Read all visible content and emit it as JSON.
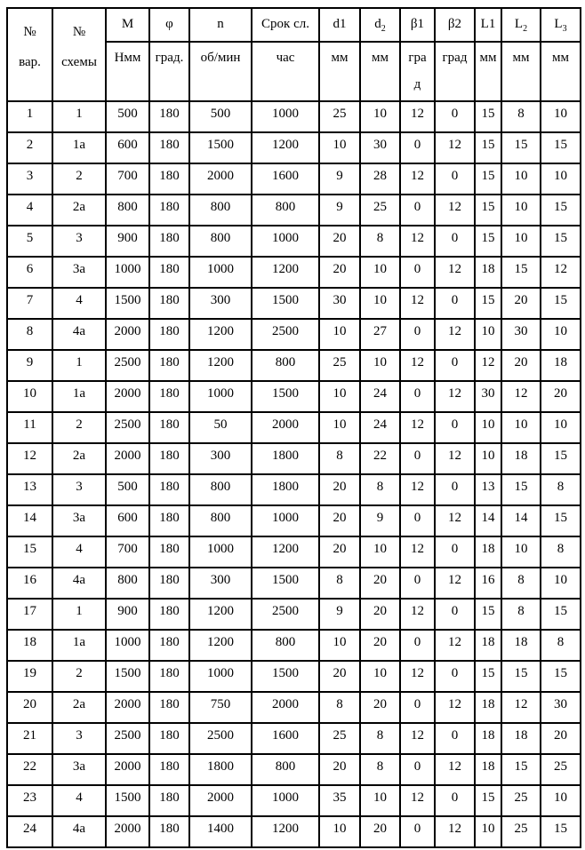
{
  "table": {
    "merged_headers": [
      {
        "line1": "№",
        "line2": "вар."
      },
      {
        "line1": "№",
        "line2": "схемы"
      }
    ],
    "params": [
      {
        "name": "M",
        "sub": "",
        "unit": "Нмм"
      },
      {
        "name": "φ",
        "sub": "",
        "unit": "град."
      },
      {
        "name": "n",
        "sub": "",
        "unit": "об/мин"
      },
      {
        "name": "Срок сл.",
        "sub": "",
        "unit": "час"
      },
      {
        "name": "d1",
        "sub": "",
        "unit": "мм"
      },
      {
        "name": "d",
        "sub": "2",
        "unit": "мм"
      },
      {
        "name": "β1",
        "sub": "",
        "unit": "град"
      },
      {
        "name": "β2",
        "sub": "",
        "unit": "град"
      },
      {
        "name": "L1",
        "sub": "",
        "unit": "мм"
      },
      {
        "name": "L",
        "sub": "2",
        "unit": "мм"
      },
      {
        "name": "L",
        "sub": "3",
        "unit": "мм"
      }
    ],
    "rows": [
      [
        "1",
        "1",
        "500",
        "180",
        "500",
        "1000",
        "25",
        "10",
        "12",
        "0",
        "15",
        "8",
        "10"
      ],
      [
        "2",
        "1а",
        "600",
        "180",
        "1500",
        "1200",
        "10",
        "30",
        "0",
        "12",
        "15",
        "15",
        "15"
      ],
      [
        "3",
        "2",
        "700",
        "180",
        "2000",
        "1600",
        "9",
        "28",
        "12",
        "0",
        "15",
        "10",
        "10"
      ],
      [
        "4",
        "2а",
        "800",
        "180",
        "800",
        "800",
        "9",
        "25",
        "0",
        "12",
        "15",
        "10",
        "15"
      ],
      [
        "5",
        "3",
        "900",
        "180",
        "800",
        "1000",
        "20",
        "8",
        "12",
        "0",
        "15",
        "10",
        "15"
      ],
      [
        "6",
        "3а",
        "1000",
        "180",
        "1000",
        "1200",
        "20",
        "10",
        "0",
        "12",
        "18",
        "15",
        "12"
      ],
      [
        "7",
        "4",
        "1500",
        "180",
        "300",
        "1500",
        "30",
        "10",
        "12",
        "0",
        "15",
        "20",
        "15"
      ],
      [
        "8",
        "4а",
        "2000",
        "180",
        "1200",
        "2500",
        "10",
        "27",
        "0",
        "12",
        "10",
        "30",
        "10"
      ],
      [
        "9",
        "1",
        "2500",
        "180",
        "1200",
        "800",
        "25",
        "10",
        "12",
        "0",
        "12",
        "20",
        "18"
      ],
      [
        "10",
        "1а",
        "2000",
        "180",
        "1000",
        "1500",
        "10",
        "24",
        "0",
        "12",
        "30",
        "12",
        "20"
      ],
      [
        "11",
        "2",
        "2500",
        "180",
        "50",
        "2000",
        "10",
        "24",
        "12",
        "0",
        "10",
        "10",
        "10"
      ],
      [
        "12",
        "2а",
        "2000",
        "180",
        "300",
        "1800",
        "8",
        "22",
        "0",
        "12",
        "10",
        "18",
        "15"
      ],
      [
        "13",
        "3",
        "500",
        "180",
        "800",
        "1800",
        "20",
        "8",
        "12",
        "0",
        "13",
        "15",
        "8"
      ],
      [
        "14",
        "3а",
        "600",
        "180",
        "800",
        "1000",
        "20",
        "9",
        "0",
        "12",
        "14",
        "14",
        "15"
      ],
      [
        "15",
        "4",
        "700",
        "180",
        "1000",
        "1200",
        "20",
        "10",
        "12",
        "0",
        "18",
        "10",
        "8"
      ],
      [
        "16",
        "4а",
        "800",
        "180",
        "300",
        "1500",
        "8",
        "20",
        "0",
        "12",
        "16",
        "8",
        "10"
      ],
      [
        "17",
        "1",
        "900",
        "180",
        "1200",
        "2500",
        "9",
        "20",
        "12",
        "0",
        "15",
        "8",
        "15"
      ],
      [
        "18",
        "1а",
        "1000",
        "180",
        "1200",
        "800",
        "10",
        "20",
        "0",
        "12",
        "18",
        "18",
        "8"
      ],
      [
        "19",
        "2",
        "1500",
        "180",
        "1000",
        "1500",
        "20",
        "10",
        "12",
        "0",
        "15",
        "15",
        "15"
      ],
      [
        "20",
        "2а",
        "2000",
        "180",
        "750",
        "2000",
        "8",
        "20",
        "0",
        "12",
        "18",
        "12",
        "30"
      ],
      [
        "21",
        "3",
        "2500",
        "180",
        "2500",
        "1600",
        "25",
        "8",
        "12",
        "0",
        "18",
        "18",
        "20"
      ],
      [
        "22",
        "3а",
        "2000",
        "180",
        "1800",
        "800",
        "20",
        "8",
        "0",
        "12",
        "18",
        "15",
        "25"
      ],
      [
        "23",
        "4",
        "1500",
        "180",
        "2000",
        "1000",
        "35",
        "10",
        "12",
        "0",
        "15",
        "25",
        "10"
      ],
      [
        "24",
        "4а",
        "2000",
        "180",
        "1400",
        "1200",
        "10",
        "20",
        "0",
        "12",
        "10",
        "25",
        "15"
      ]
    ],
    "colors": {
      "border": "#000000",
      "background": "#ffffff",
      "text": "#000000"
    }
  }
}
